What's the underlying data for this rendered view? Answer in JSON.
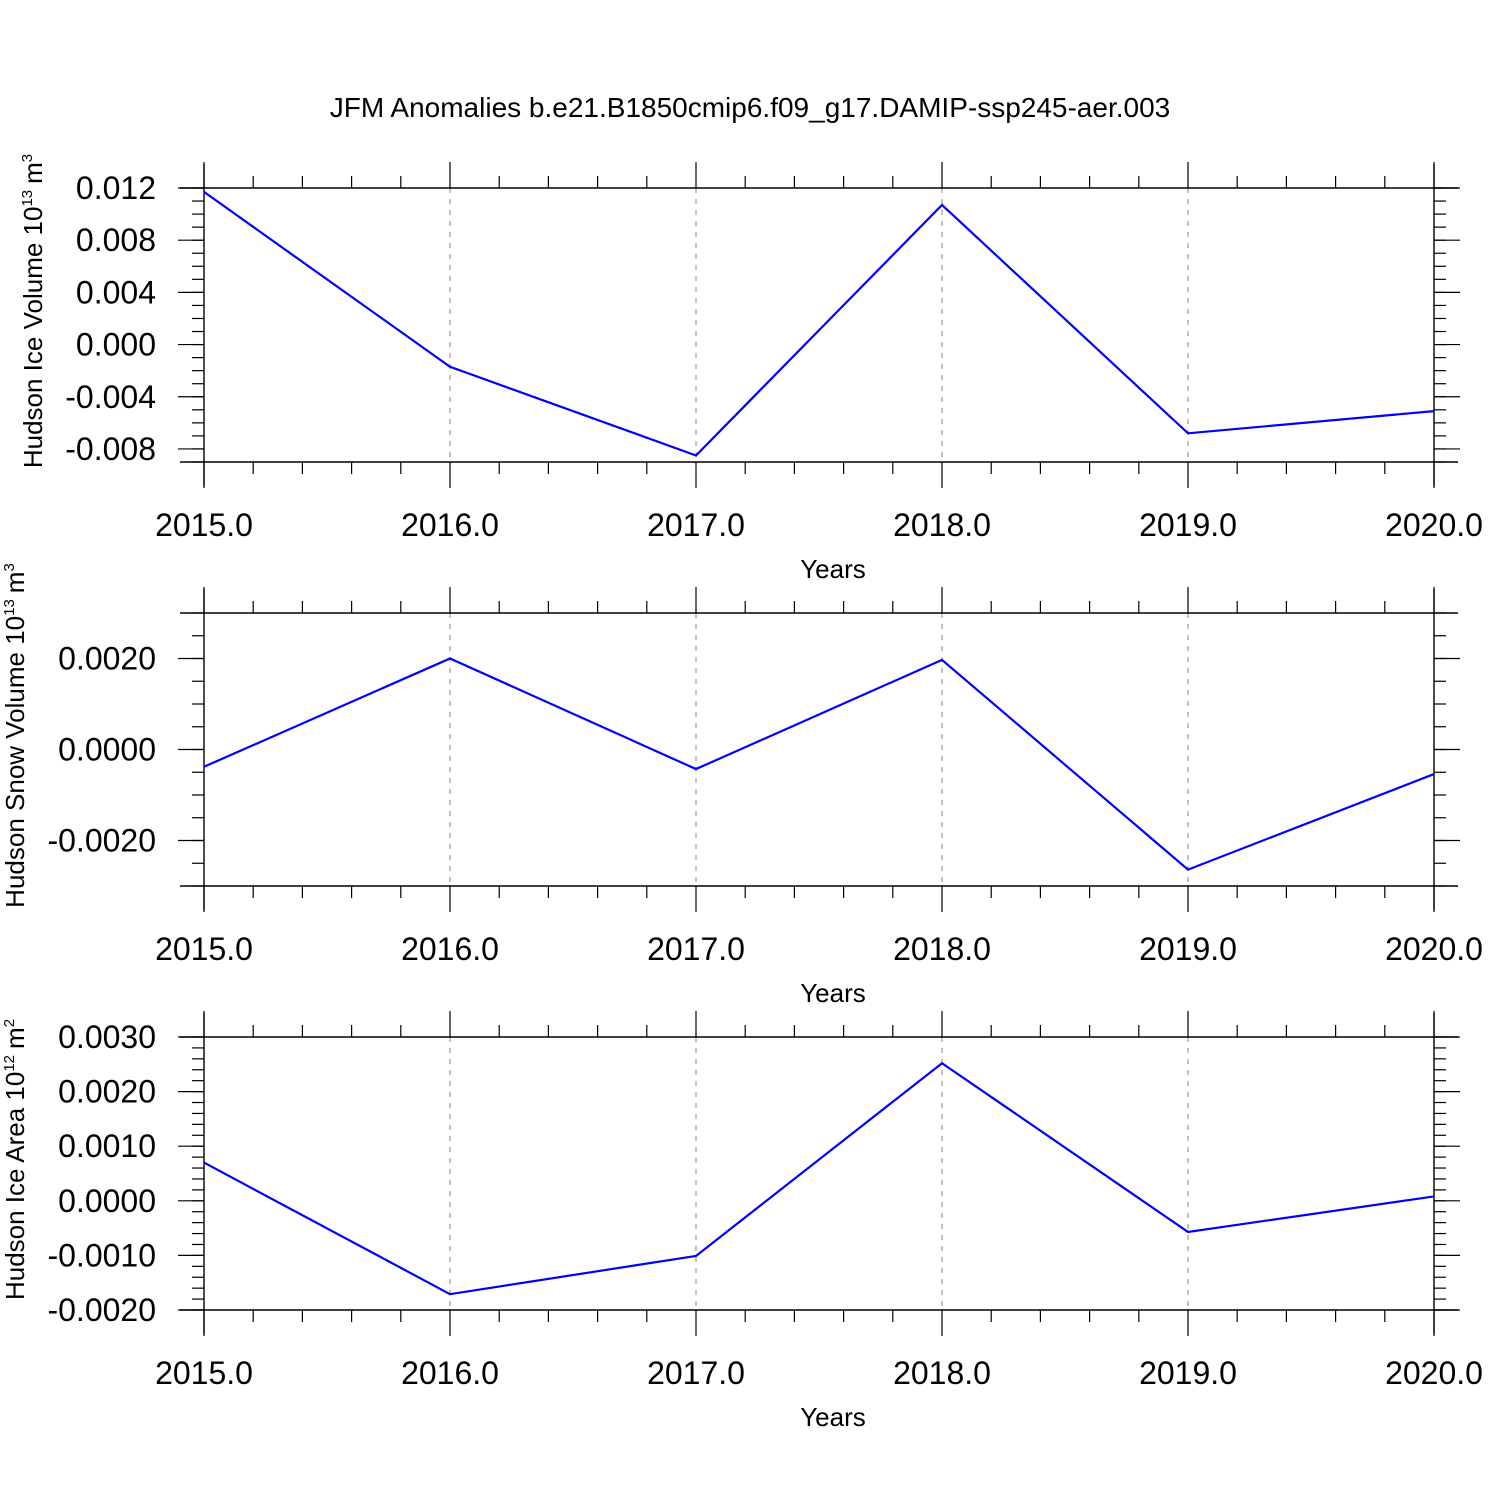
{
  "title": "JFM Anomalies b.e21.B1850cmip6.f09_g17.DAMIP-ssp245-aer.003",
  "colors": {
    "series": "#0000ff",
    "grid": "#999999",
    "axis": "#000000"
  },
  "chart_data": [
    {
      "type": "line",
      "xlabel": "Years",
      "ylabel": {
        "text": "Hudson Ice Volume 10",
        "exponent": "13",
        "unit": "m",
        "unit_exponent": "3"
      },
      "x": [
        2015,
        2016,
        2017,
        2018,
        2019,
        2020
      ],
      "xticks": [
        "2015.0",
        "2016.0",
        "2017.0",
        "2018.0",
        "2019.0",
        "2020.0"
      ],
      "xlim": [
        2015,
        2020
      ],
      "ylim": [
        -0.009,
        0.012
      ],
      "yticks": [
        0.012,
        0.008,
        0.004,
        0.0,
        -0.004,
        -0.008
      ],
      "ytick_labels": [
        "0.012",
        "0.008",
        "0.004",
        "0.000",
        "-0.004",
        "-0.008"
      ],
      "y_minor_step": 0.001,
      "series": [
        {
          "values": [
            0.0117,
            -0.0017,
            -0.0085,
            0.0107,
            -0.0068,
            -0.0051
          ]
        }
      ],
      "grid": "vertical dashed at major x ticks"
    },
    {
      "type": "line",
      "xlabel": "Years",
      "ylabel": {
        "text": "Hudson Snow Volume 10",
        "exponent": "13",
        "unit": "m",
        "unit_exponent": "3"
      },
      "x": [
        2015,
        2016,
        2017,
        2018,
        2019,
        2020
      ],
      "xticks": [
        "2015.0",
        "2016.0",
        "2017.0",
        "2018.0",
        "2019.0",
        "2020.0"
      ],
      "xlim": [
        2015,
        2020
      ],
      "ylim": [
        -0.003,
        0.003
      ],
      "yticks": [
        0.002,
        0.0,
        -0.002
      ],
      "ytick_labels": [
        "0.0020",
        "0.0000",
        "-0.0020"
      ],
      "y_minor_step": 0.0005,
      "series": [
        {
          "values": [
            -0.00038,
            0.002,
            -0.00043,
            0.00197,
            -0.00264,
            -0.00054
          ]
        }
      ],
      "grid": "vertical dashed at major x ticks"
    },
    {
      "type": "line",
      "xlabel": "Years",
      "ylabel": {
        "text": "Hudson Ice Area 10",
        "exponent": "12",
        "unit": "m",
        "unit_exponent": "2"
      },
      "x": [
        2015,
        2016,
        2017,
        2018,
        2019,
        2020
      ],
      "xticks": [
        "2015.0",
        "2016.0",
        "2017.0",
        "2018.0",
        "2019.0",
        "2020.0"
      ],
      "xlim": [
        2015,
        2020
      ],
      "ylim": [
        -0.002,
        0.003
      ],
      "yticks": [
        0.003,
        0.002,
        0.001,
        0.0,
        -0.001,
        -0.002
      ],
      "ytick_labels": [
        "0.0030",
        "0.0020",
        "0.0010",
        "0.0000",
        "-0.0010",
        "-0.0020"
      ],
      "y_minor_step": 0.0002,
      "series": [
        {
          "values": [
            0.0007,
            -0.00171,
            -0.00101,
            0.00252,
            -0.00057,
            8e-05
          ]
        }
      ],
      "grid": "vertical dashed at major x ticks"
    }
  ]
}
